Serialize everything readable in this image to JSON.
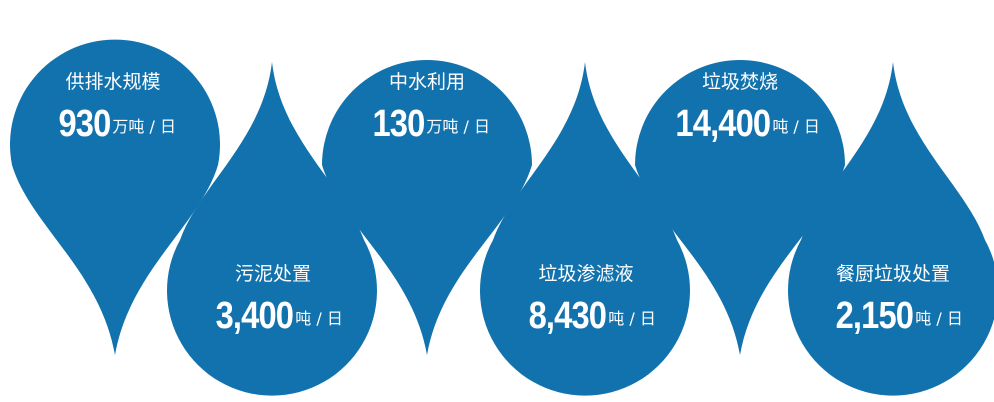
{
  "theme": {
    "drop_color": "#1272AE",
    "text_color": "#FFFFFF"
  },
  "drops": [
    {
      "title": "供排水规模",
      "value": "930",
      "unit": "万吨 / 日",
      "direction": "down"
    },
    {
      "title": "污泥处置",
      "value": "3,400",
      "unit": "吨 / 日",
      "direction": "up"
    },
    {
      "title": "中水利用",
      "value": "130",
      "unit": "万吨 / 日",
      "direction": "down"
    },
    {
      "title": "垃圾渗滤液",
      "value": "8,430",
      "unit": "吨 / 日",
      "direction": "up"
    },
    {
      "title": "垃圾焚烧",
      "value": "14,400",
      "unit": "吨 / 日",
      "direction": "down"
    },
    {
      "title": "餐厨垃圾处置",
      "value": "2,150",
      "unit": "吨 / 日",
      "direction": "up"
    }
  ]
}
